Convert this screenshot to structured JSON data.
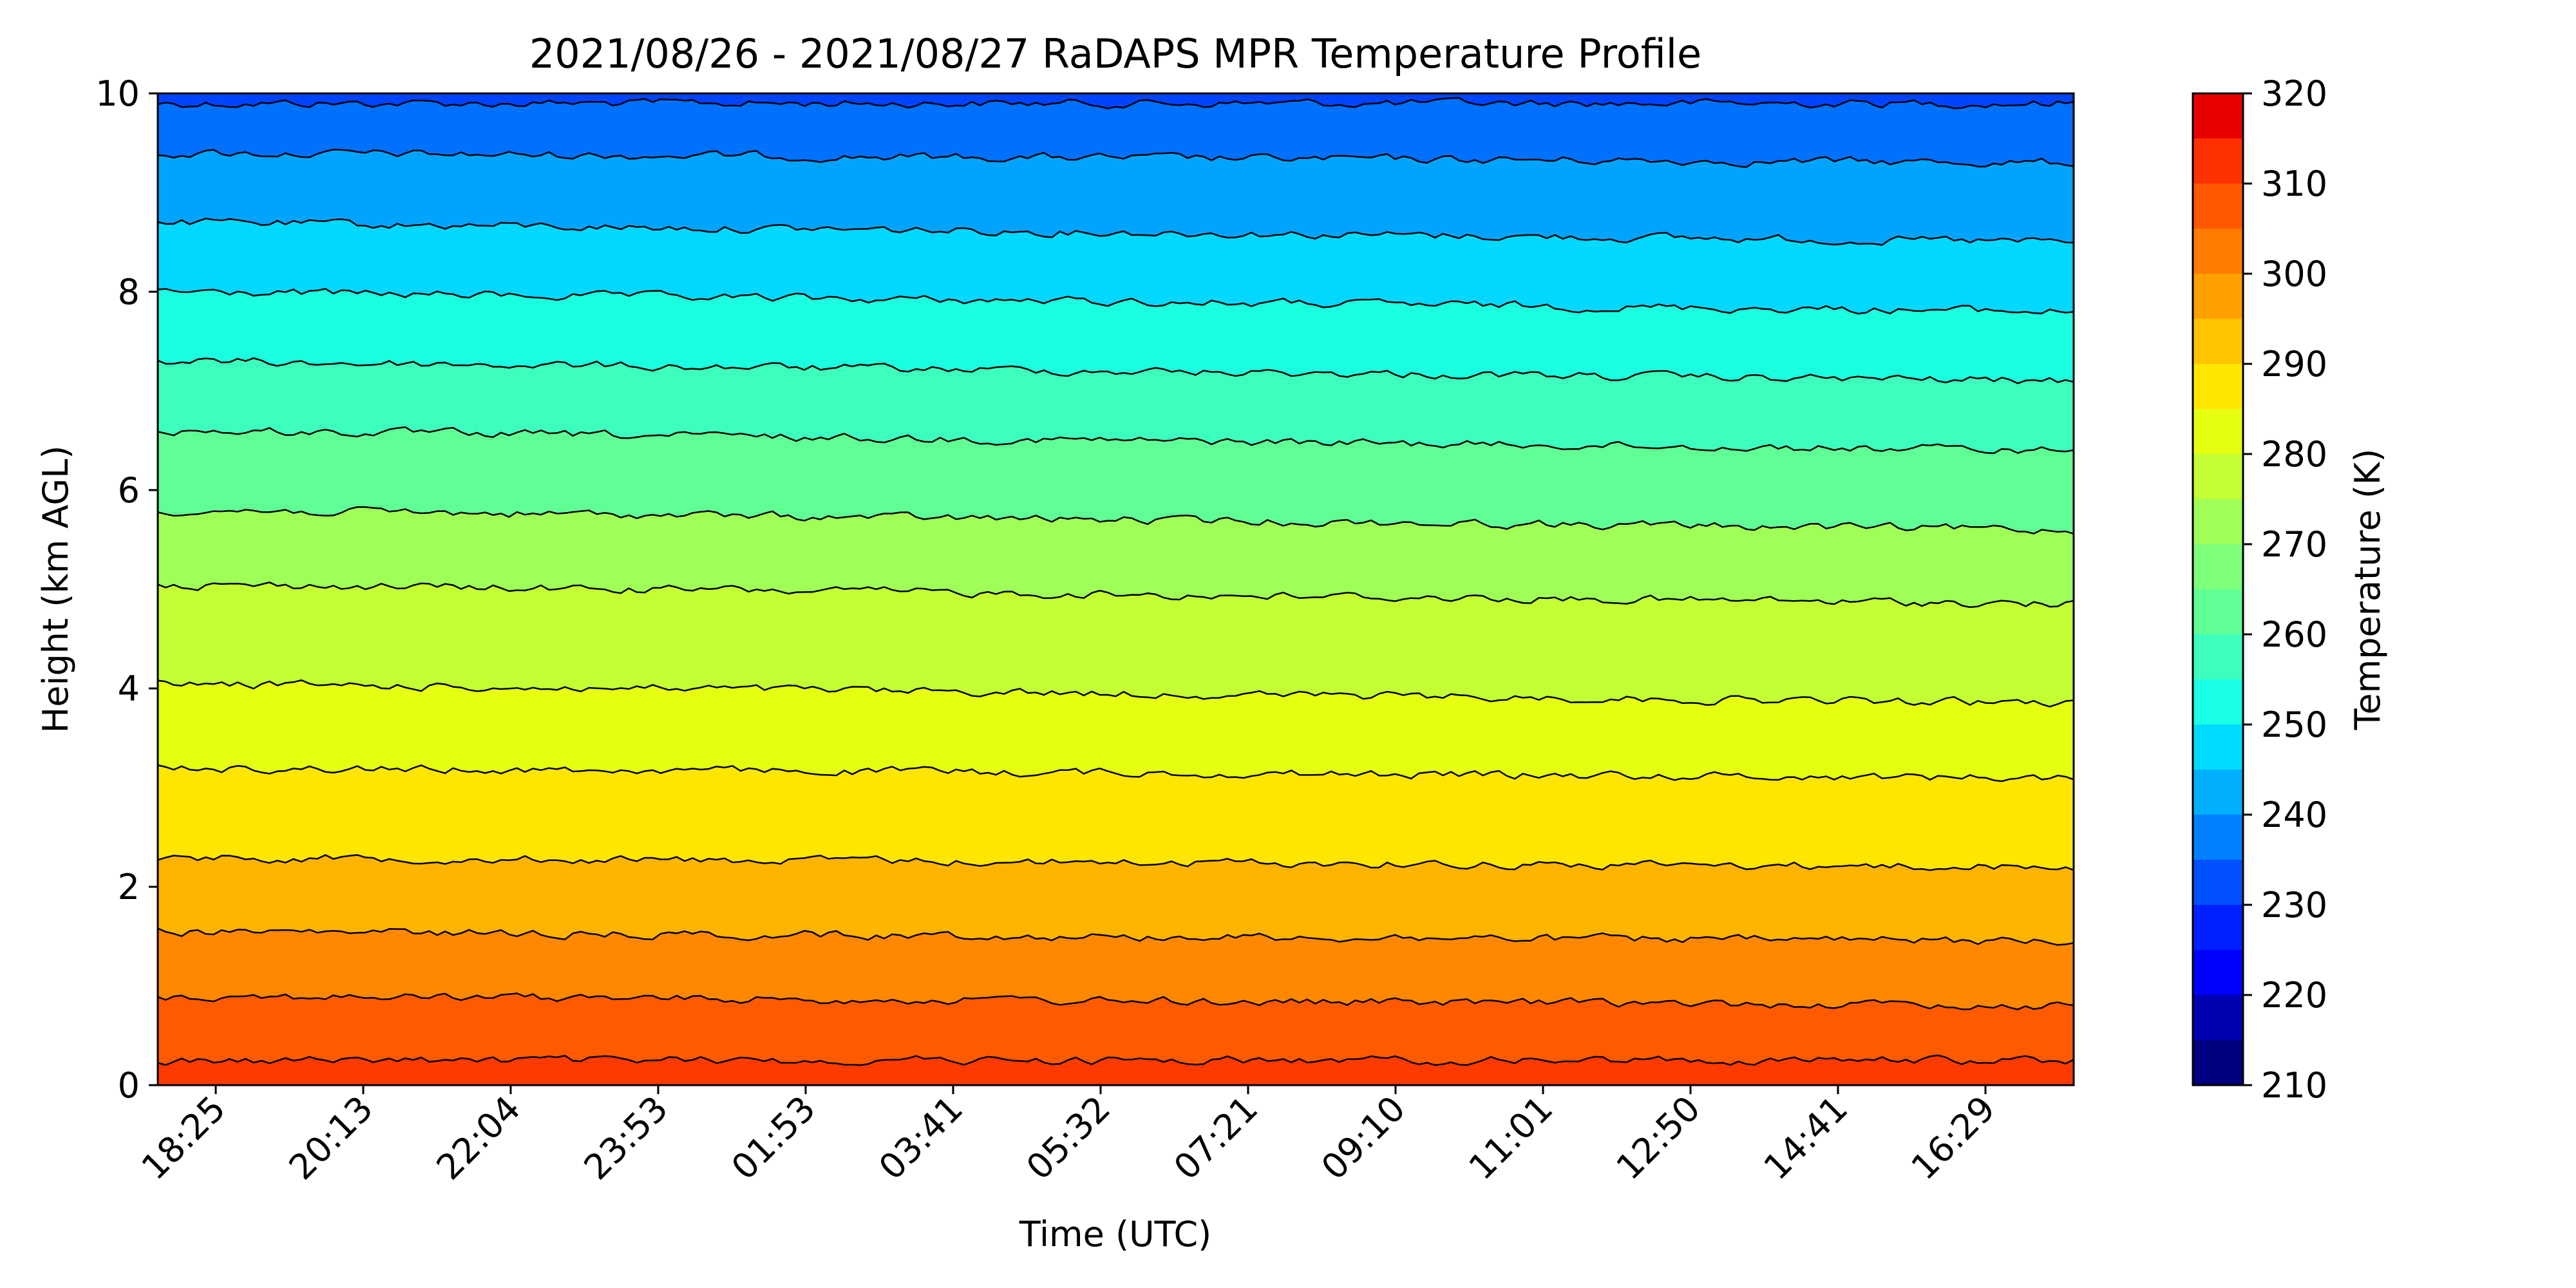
{
  "chart_data": {
    "type": "heatmap",
    "title": "2021/08/26 - 2021/08/27 RaDAPS MPR Temperature Profile",
    "xlabel": "Time (UTC)",
    "ylabel": "Height (km AGL)",
    "ylim": [
      0,
      10
    ],
    "x_tick_labels": [
      "18:25",
      "20:13",
      "22:04",
      "23:53",
      "01:53",
      "03:41",
      "05:32",
      "07:21",
      "09:10",
      "11:01",
      "12:50",
      "14:41",
      "16:29"
    ],
    "y_ticks": [
      0,
      2,
      4,
      6,
      8,
      10
    ],
    "colorbar": {
      "label": "Temperature (K)",
      "min": 210,
      "max": 320,
      "step": 5,
      "tick_values": [
        210,
        220,
        230,
        240,
        250,
        260,
        270,
        280,
        290,
        300,
        310,
        320
      ],
      "colors": [
        "#000080",
        "#0000b1",
        "#0000ff",
        "#0020ff",
        "#0050ff",
        "#0080ff",
        "#00b0ff",
        "#00dcff",
        "#1affe6",
        "#3dffbd",
        "#60ff96",
        "#7dff7a",
        "#a0ff57",
        "#c3ff33",
        "#e6ff10",
        "#ffe600",
        "#ffc400",
        "#ffa000",
        "#ff7c00",
        "#ff5800",
        "#ff3000",
        "#e80000",
        "#bd0000",
        "#800000"
      ]
    },
    "isotherm_heights_km_start": [
      9.9,
      9.4,
      8.7,
      8.0,
      7.3,
      6.6,
      5.8,
      5.05,
      4.05,
      3.2,
      2.3,
      1.55,
      0.9,
      0.25
    ],
    "isotherm_heights_km_end": [
      9.9,
      9.3,
      8.5,
      7.8,
      7.1,
      6.4,
      5.6,
      4.85,
      3.85,
      3.1,
      2.2,
      1.45,
      0.8,
      0.25
    ],
    "background_colors": {
      "figure": "#ffffff",
      "contour_line": "#000000"
    }
  }
}
